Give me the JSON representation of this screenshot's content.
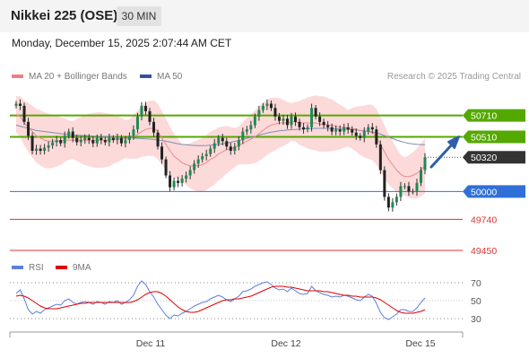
{
  "header": {
    "title": "Nikkei 225 (OSE)",
    "timeframe": "30 MIN",
    "datetime": "Monday, December 15, 2025 2:07:44 AM CET"
  },
  "legend": {
    "ma20_label": "MA 20 + Bollinger Bands",
    "ma20_color": "#f08080",
    "ma50_label": "MA 50",
    "ma50_color": "#2f5597",
    "research": "Research © 2025 Trading Central"
  },
  "rsi_legend": {
    "rsi_label": "RSI",
    "rsi_color": "#5b7fdb",
    "ma_label": "9MA",
    "ma_color": "#e00000"
  },
  "chart_data": [
    {
      "type": "candlestick",
      "ylim": [
        49400,
        50950
      ],
      "x_labels": [
        "Dec 11",
        "Dec 12",
        "Dec 15"
      ],
      "levels": [
        {
          "value": 50710,
          "label": "50710",
          "kind": "resistance",
          "color": "#55a800"
        },
        {
          "value": 50510,
          "label": "50510",
          "kind": "resistance",
          "color": "#55a800"
        },
        {
          "value": 50320,
          "label": "50320",
          "kind": "last",
          "color": "#333333"
        },
        {
          "value": 50000,
          "label": "50000",
          "kind": "pivot",
          "color": "#2f6fd8"
        },
        {
          "value": 49740,
          "label": "49740",
          "kind": "support",
          "color": "#dd3333"
        },
        {
          "value": 49450,
          "label": "49450",
          "kind": "support",
          "color": "#dd3333"
        }
      ],
      "close": [
        50820,
        50800,
        50650,
        50520,
        50380,
        50400,
        50380,
        50410,
        50430,
        50460,
        50480,
        50450,
        50520,
        50560,
        50500,
        50460,
        50480,
        50500,
        50480,
        50450,
        50500,
        50480,
        50460,
        50500,
        50480,
        50500,
        50450,
        50480,
        50520,
        50580,
        50700,
        50800,
        50750,
        50650,
        50550,
        50420,
        50300,
        50150,
        50040,
        50100,
        50080,
        50120,
        50150,
        50200,
        50260,
        50300,
        50330,
        50350,
        50400,
        50450,
        50500,
        50470,
        50420,
        50380,
        50420,
        50480,
        50560,
        50580,
        50620,
        50700,
        50760,
        50800,
        50820,
        50780,
        50700,
        50660,
        50680,
        50620,
        50700,
        50650,
        50600,
        50580,
        50600,
        50780,
        50700,
        50650,
        50620,
        50600,
        50560,
        50580,
        50560,
        50600,
        50580,
        50550,
        50520,
        50500,
        50560,
        50600,
        50580,
        50440,
        50200,
        49950,
        49850,
        49900,
        49950,
        50050,
        50050,
        50000,
        50000,
        50080,
        50200,
        50320
      ],
      "ma20": [
        50720,
        50700,
        50640,
        50600,
        50560,
        50520,
        50500,
        50480,
        50470,
        50470,
        50470,
        50470,
        50480,
        50480,
        50480,
        50480,
        50480,
        50480,
        50480,
        50480,
        50480,
        50480,
        50480,
        50480,
        50490,
        50490,
        50490,
        50490,
        50490,
        50510,
        50530,
        50560,
        50580,
        50590,
        50590,
        50560,
        50500,
        50440,
        50380,
        50330,
        50300,
        50270,
        50250,
        50240,
        50240,
        50240,
        50250,
        50270,
        50300,
        50320,
        50350,
        50370,
        50390,
        50400,
        50410,
        50430,
        50450,
        50470,
        50490,
        50510,
        50540,
        50570,
        50600,
        50620,
        50630,
        50640,
        50640,
        50640,
        50650,
        50650,
        50640,
        50640,
        50640,
        50640,
        50640,
        50630,
        50630,
        50620,
        50620,
        50610,
        50600,
        50600,
        50590,
        50590,
        50580,
        50570,
        50560,
        50560,
        50550,
        50510,
        50440,
        50370,
        50300,
        50250,
        50200,
        50160,
        50140,
        50140,
        50150,
        50170,
        50200,
        50240
      ],
      "ma50": [
        50620,
        50610,
        50600,
        50590,
        50580,
        50570,
        50565,
        50560,
        50555,
        50550,
        50545,
        50540,
        50535,
        50530,
        50528,
        50526,
        50524,
        50522,
        50520,
        50518,
        50516,
        50514,
        50512,
        50510,
        50508,
        50506,
        50504,
        50502,
        50500,
        50498,
        50496,
        50494,
        50492,
        50490,
        50486,
        50482,
        50476,
        50470,
        50462,
        50454,
        50446,
        50440,
        50436,
        50432,
        50430,
        50428,
        50428,
        50430,
        50432,
        50436,
        50440,
        50446,
        50452,
        50460,
        50468,
        50476,
        50486,
        50496,
        50506,
        50516,
        50526,
        50536,
        50546,
        50554,
        50560,
        50566,
        50570,
        50574,
        50578,
        50580,
        50582,
        50584,
        50586,
        50588,
        50590,
        50590,
        50590,
        50590,
        50588,
        50586,
        50584,
        50582,
        50580,
        50578,
        50574,
        50570,
        50566,
        50562,
        50556,
        50548,
        50536,
        50522,
        50508,
        50494,
        50480,
        50468,
        50458,
        50450,
        50444,
        50440,
        50438,
        50436
      ],
      "rsi": [
        58,
        62,
        52,
        40,
        35,
        38,
        36,
        40,
        42,
        44,
        46,
        45,
        50,
        52,
        48,
        46,
        48,
        49,
        48,
        46,
        49,
        48,
        46,
        49,
        48,
        50,
        46,
        48,
        51,
        56,
        66,
        72,
        68,
        60,
        54,
        46,
        40,
        34,
        30,
        34,
        33,
        36,
        38,
        41,
        44,
        46,
        48,
        49,
        52,
        54,
        56,
        54,
        51,
        49,
        52,
        55,
        60,
        61,
        63,
        66,
        68,
        70,
        71,
        68,
        64,
        62,
        63,
        60,
        64,
        61,
        58,
        57,
        58,
        66,
        61,
        59,
        57,
        56,
        54,
        55,
        54,
        56,
        55,
        53,
        51,
        50,
        54,
        57,
        55,
        47,
        37,
        31,
        29,
        32,
        35,
        40,
        40,
        38,
        38,
        42,
        48,
        53
      ],
      "rsi_ma": [
        55,
        56,
        55,
        53,
        50,
        47,
        44,
        42,
        41,
        41,
        41,
        42,
        43,
        44,
        45,
        46,
        47,
        47,
        48,
        48,
        48,
        48,
        48,
        48,
        48,
        48,
        48,
        48,
        48,
        49,
        51,
        54,
        57,
        59,
        60,
        60,
        58,
        55,
        51,
        47,
        43,
        40,
        38,
        37,
        37,
        38,
        40,
        42,
        44,
        46,
        48,
        50,
        51,
        51,
        52,
        52,
        53,
        54,
        55,
        57,
        59,
        61,
        63,
        65,
        66,
        66,
        66,
        65,
        65,
        64,
        63,
        62,
        61,
        61,
        61,
        61,
        60,
        60,
        59,
        58,
        57,
        56,
        56,
        55,
        55,
        54,
        54,
        54,
        54,
        53,
        51,
        48,
        45,
        42,
        39,
        37,
        36,
        36,
        36,
        37,
        38,
        40
      ],
      "rsi_ticks": [
        70,
        50,
        30
      ]
    }
  ]
}
